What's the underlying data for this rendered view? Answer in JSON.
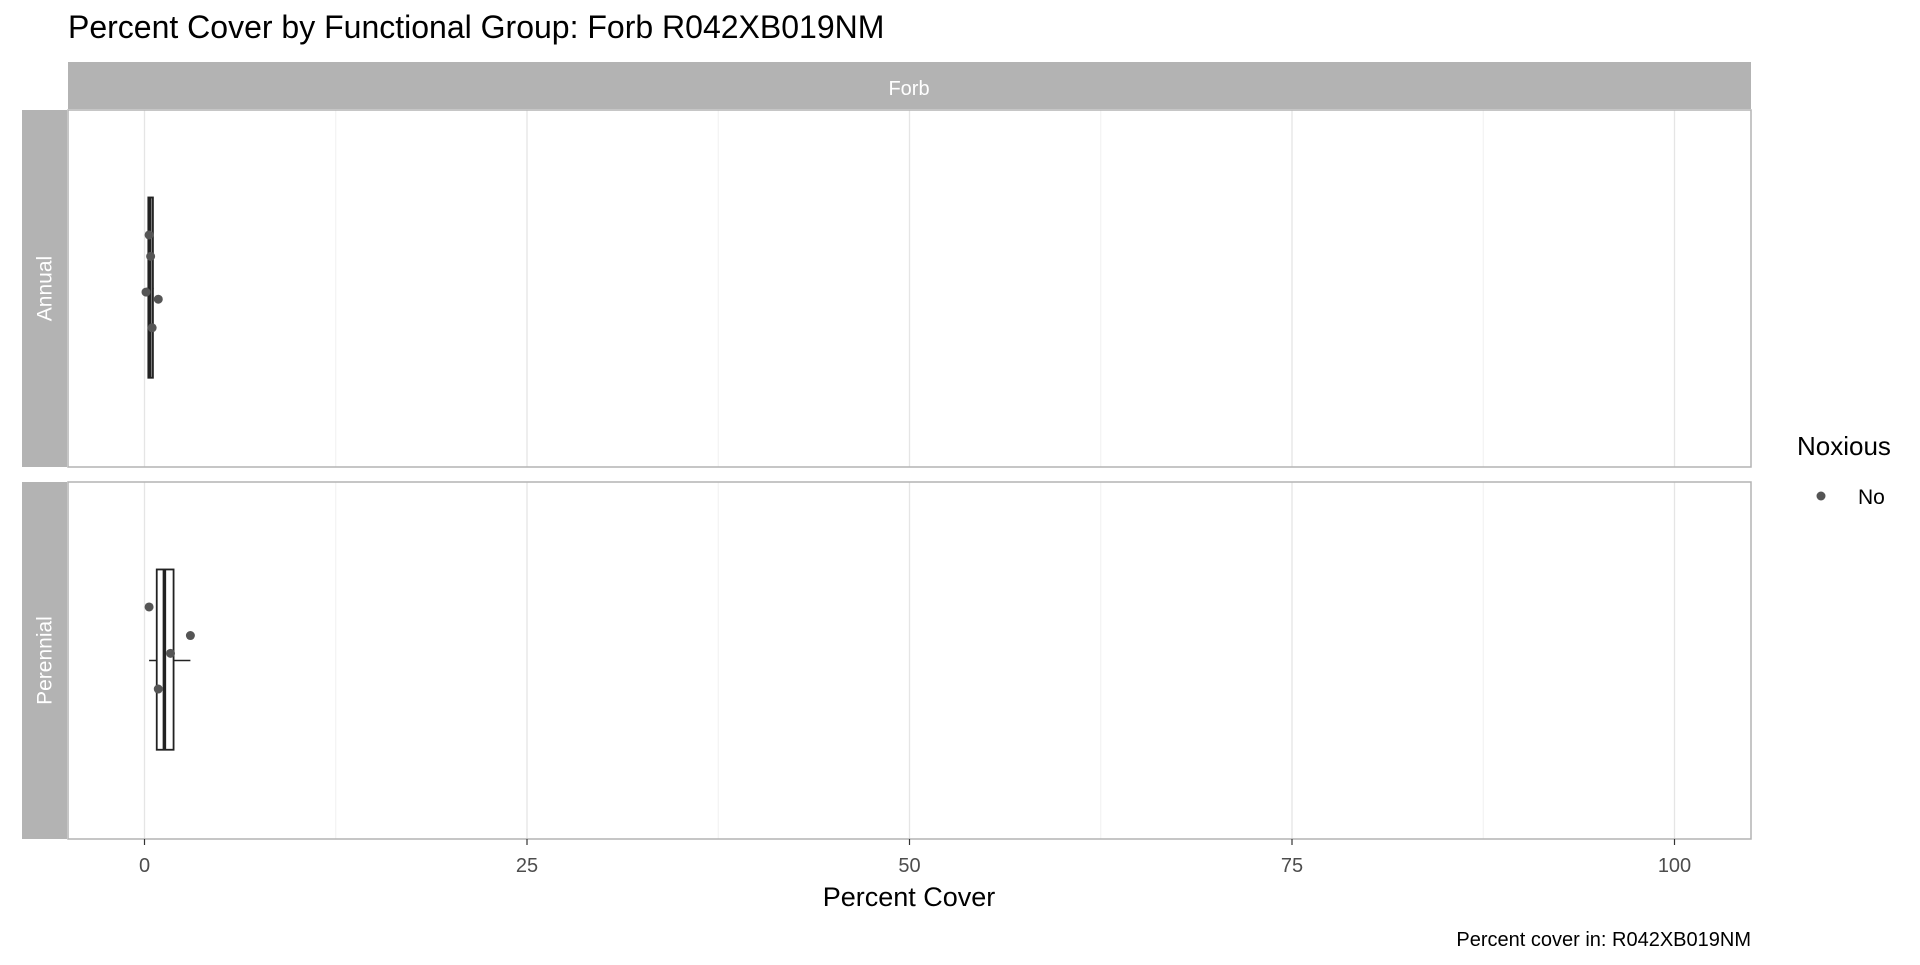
{
  "chart_data": {
    "type": "boxplot",
    "title": "Percent Cover by Functional Group: Forb R042XB019NM",
    "xlabel": "Percent Cover",
    "ylabel": "",
    "caption": "Percent cover in:  R042XB019NM",
    "facet_column": "Forb",
    "x_ticks": [
      "0",
      "25",
      "50",
      "75",
      "100"
    ],
    "x_tick_values": [
      0,
      25,
      50,
      75,
      100
    ],
    "xlim": [
      -5,
      105
    ],
    "grid": true,
    "legend": {
      "title": "Noxious",
      "position": "right",
      "entries": [
        {
          "label": "No",
          "color": "#555555"
        }
      ]
    },
    "panels": [
      {
        "label": "Annual",
        "box": {
          "min": 0.1,
          "q1": 0.25,
          "median": 0.35,
          "q3": 0.55,
          "max": 0.6
        },
        "points": [
          {
            "x": 0.3,
            "y": 0.65
          },
          {
            "x": 0.4,
            "y": 0.59
          },
          {
            "x": 0.1,
            "y": 0.49
          },
          {
            "x": 0.9,
            "y": 0.47
          },
          {
            "x": 0.5,
            "y": 0.39
          }
        ]
      },
      {
        "label": "Perennial",
        "box": {
          "min": 0.3,
          "q1": 0.8,
          "median": 1.3,
          "q3": 1.9,
          "max": 3.0
        },
        "points": [
          {
            "x": 0.3,
            "y": 0.65
          },
          {
            "x": 3.0,
            "y": 0.57
          },
          {
            "x": 1.7,
            "y": 0.52
          },
          {
            "x": 0.9,
            "y": 0.42
          }
        ]
      }
    ]
  }
}
